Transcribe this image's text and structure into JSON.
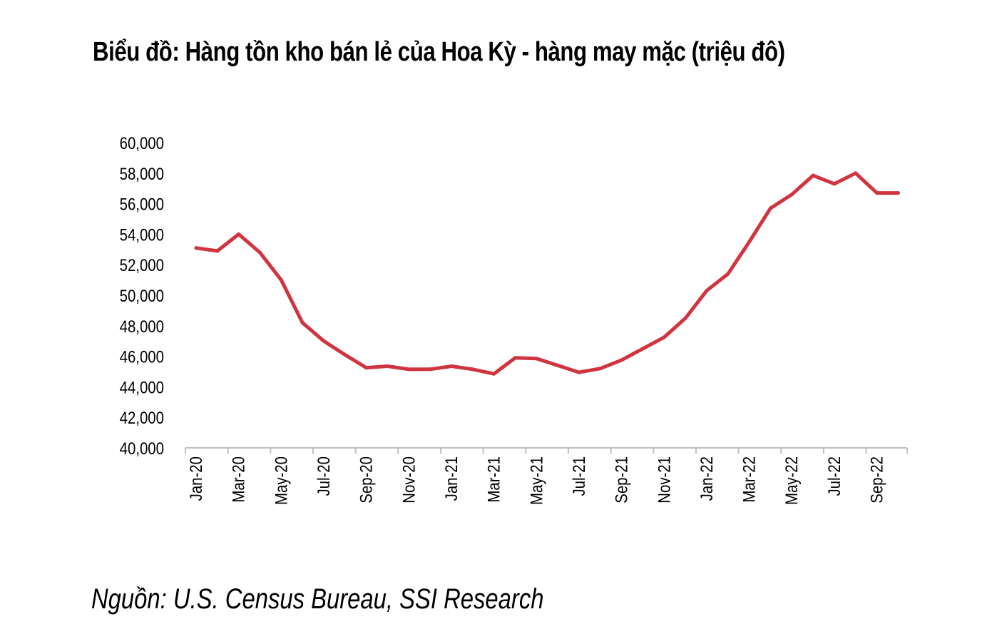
{
  "title": "Biểu đồ: Hàng tồn kho bán lẻ của Hoa Kỳ - hàng may mặc (triệu đô)",
  "source": "Nguồn: U.S. Census Bureau, SSI Research",
  "colors": {
    "line": "#d0343f",
    "axis": "#bfbfbf",
    "text": "#000000"
  },
  "chart_data": {
    "type": "line",
    "title": "Biểu đồ: Hàng tồn kho bán lẻ của Hoa Kỳ - hàng may mặc (triệu đô)",
    "xlabel": "",
    "ylabel": "",
    "ylim": [
      40000,
      60000
    ],
    "y_ticks": [
      "40,000",
      "42,000",
      "44,000",
      "46,000",
      "48,000",
      "50,000",
      "52,000",
      "54,000",
      "56,000",
      "58,000",
      "60,000"
    ],
    "x_tick_labels": [
      "Jan-20",
      "Mar-20",
      "May-20",
      "Jul-20",
      "Sep-20",
      "Nov-20",
      "Jan-21",
      "Mar-21",
      "May-21",
      "Jul-21",
      "Sep-21",
      "Nov-21",
      "Jan-22",
      "Mar-22",
      "May-22",
      "Jul-22",
      "Sep-22"
    ],
    "categories": [
      "Jan-20",
      "Feb-20",
      "Mar-20",
      "Apr-20",
      "May-20",
      "Jun-20",
      "Jul-20",
      "Aug-20",
      "Sep-20",
      "Oct-20",
      "Nov-20",
      "Dec-20",
      "Jan-21",
      "Feb-21",
      "Mar-21",
      "Apr-21",
      "May-21",
      "Jun-21",
      "Jul-21",
      "Aug-21",
      "Sep-21",
      "Oct-21",
      "Nov-21",
      "Dec-21",
      "Jan-22",
      "Feb-22",
      "Mar-22",
      "Apr-22",
      "May-22",
      "Jun-22",
      "Jul-22",
      "Aug-22",
      "Sep-22",
      "Oct-22"
    ],
    "grid": false,
    "legend": "none",
    "series": [
      {
        "values": [
          53100,
          52900,
          54000,
          52800,
          51000,
          48200,
          47000,
          46100,
          45250,
          45350,
          45150,
          45150,
          45350,
          45150,
          44850,
          45900,
          45850,
          45400,
          44950,
          45200,
          45750,
          46500,
          47250,
          48500,
          50300,
          51400,
          53500,
          55700,
          56600,
          57850,
          57300,
          58000,
          56700,
          56700
        ]
      }
    ]
  }
}
